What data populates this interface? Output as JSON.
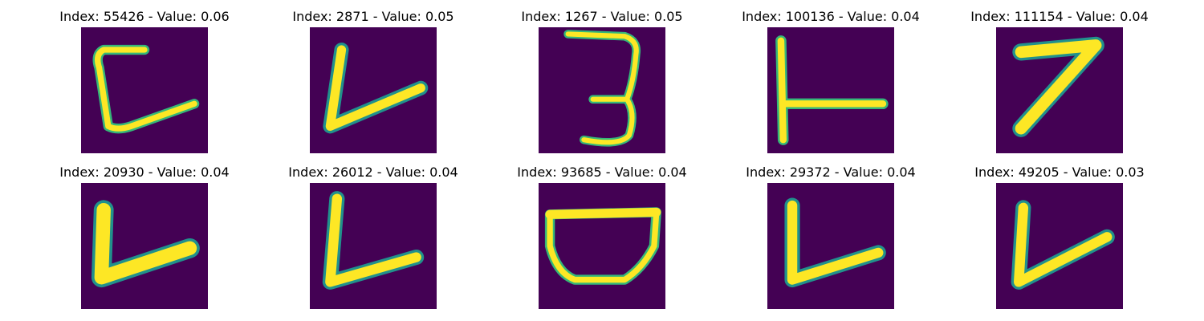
{
  "colors": {
    "background": "#440154",
    "stroke": "#fde725",
    "stroke_edge": "#35b779",
    "stroke_mid": "#21918c"
  },
  "panels": [
    {
      "title": "Index: 55426 - Value: 0.06",
      "image": "handwritten glyph resembling a bracket / C shape"
    },
    {
      "title": "Index: 2871 - Value: 0.05",
      "image": "handwritten glyph resembling a V / L shape"
    },
    {
      "title": "Index: 1267 - Value: 0.05",
      "image": "handwritten digit 3"
    },
    {
      "title": "Index: 100136 - Value: 0.04",
      "image": "handwritten glyph resembling a T rotated (⊢)"
    },
    {
      "title": "Index: 111154 - Value: 0.04",
      "image": "handwritten digit 7"
    },
    {
      "title": "Index: 20930 - Value: 0.04",
      "image": "handwritten glyph resembling a V / L shape"
    },
    {
      "title": "Index: 26012 - Value: 0.04",
      "image": "handwritten glyph resembling an L shape"
    },
    {
      "title": "Index: 93685 - Value: 0.04",
      "image": "handwritten glyph resembling a bowl / D shape"
    },
    {
      "title": "Index: 29372 - Value: 0.04",
      "image": "handwritten glyph resembling an L shape"
    },
    {
      "title": "Index: 49205 - Value: 0.03",
      "image": "handwritten glyph resembling a V / L shape"
    }
  ]
}
